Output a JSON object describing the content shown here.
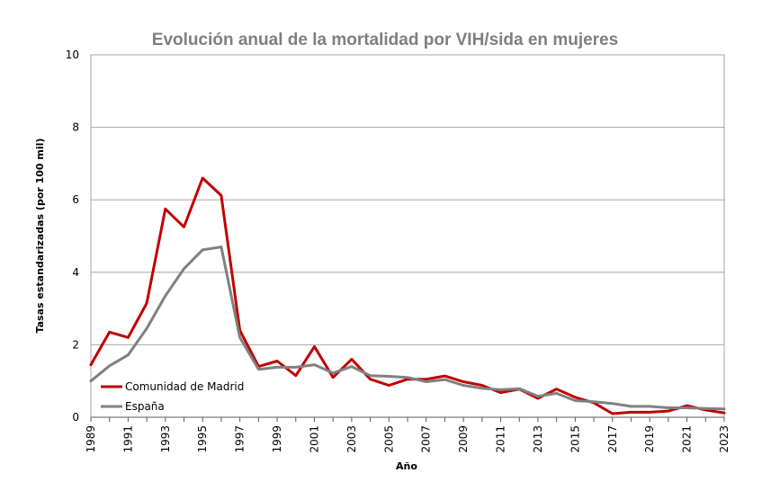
{
  "chart_data": {
    "type": "line",
    "title": "Evolución anual de la mortalidad por VIH/sida en mujeres",
    "xlabel": "Año",
    "ylabel": "Tasas estandarizadas (por 100 mil)",
    "ylim": [
      0,
      10
    ],
    "yticks": [
      "0",
      "2",
      "4",
      "6",
      "8",
      "10"
    ],
    "xlim": [
      1989,
      2023
    ],
    "xticks": [
      "1989",
      "1991",
      "1993",
      "1995",
      "1997",
      "1999",
      "2001",
      "2003",
      "2005",
      "2007",
      "2009",
      "2011",
      "2013",
      "2015",
      "2017",
      "2019",
      "2021",
      "2023"
    ],
    "grid": "horizontal",
    "legend_position": "bottom-left",
    "x": [
      1989,
      1990,
      1991,
      1992,
      1993,
      1994,
      1995,
      1996,
      1997,
      1998,
      1999,
      2000,
      2001,
      2002,
      2003,
      2004,
      2005,
      2006,
      2007,
      2008,
      2009,
      2010,
      2011,
      2012,
      2013,
      2014,
      2015,
      2016,
      2017,
      2018,
      2019,
      2020,
      2021,
      2022,
      2023
    ],
    "series": [
      {
        "name": "Comunidad de Madrid",
        "color": "#c00000",
        "values": [
          1.45,
          2.35,
          2.2,
          3.15,
          5.75,
          5.25,
          6.6,
          6.12,
          2.4,
          1.4,
          1.55,
          1.15,
          1.95,
          1.1,
          1.6,
          1.05,
          0.88,
          1.05,
          1.05,
          1.14,
          0.98,
          0.88,
          0.68,
          0.78,
          0.52,
          0.78,
          0.55,
          0.4,
          0.1,
          0.14,
          0.14,
          0.17,
          0.32,
          0.2,
          0.12
        ]
      },
      {
        "name": "España",
        "color": "#808080",
        "values": [
          1.0,
          1.42,
          1.72,
          2.45,
          3.35,
          4.1,
          4.62,
          4.7,
          2.2,
          1.32,
          1.38,
          1.38,
          1.45,
          1.22,
          1.4,
          1.15,
          1.13,
          1.1,
          0.98,
          1.04,
          0.88,
          0.8,
          0.76,
          0.79,
          0.58,
          0.66,
          0.46,
          0.43,
          0.38,
          0.3,
          0.3,
          0.26,
          0.26,
          0.24,
          0.23
        ]
      }
    ]
  }
}
